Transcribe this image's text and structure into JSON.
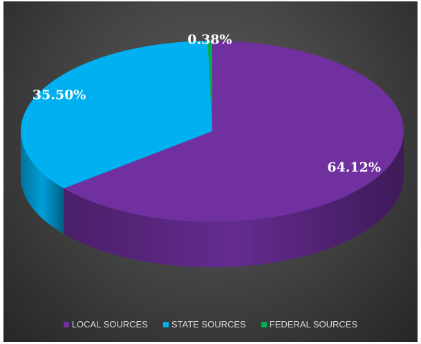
{
  "chart_data": {
    "type": "pie",
    "categories": [
      "LOCAL SOURCES",
      "STATE SOURCES",
      "FEDERAL SOURCES"
    ],
    "values": [
      64.12,
      35.5,
      0.38
    ],
    "data_labels": [
      "64.12%",
      "35.50%",
      "0.38%"
    ],
    "colors": [
      "#7030a0",
      "#00b0f0",
      "#00b050"
    ],
    "style": "3d",
    "legend": "bottom"
  }
}
